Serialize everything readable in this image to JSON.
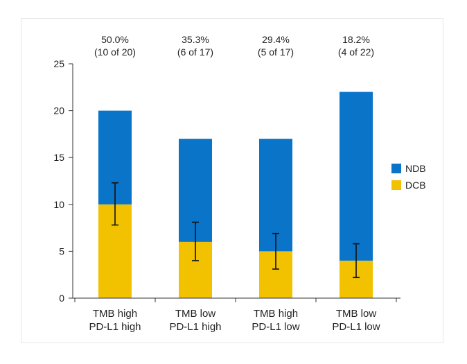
{
  "chart_data": {
    "type": "bar",
    "stacked": true,
    "categories": [
      [
        "TMB high",
        "PD-L1 high"
      ],
      [
        "TMB low",
        "PD-L1 high"
      ],
      [
        "TMB high",
        "PD-L1 low"
      ],
      [
        "TMB low",
        "PD-L1 low"
      ]
    ],
    "series": [
      {
        "name": "DCB",
        "color": "#f2c200",
        "values": [
          10,
          6,
          5,
          4
        ]
      },
      {
        "name": "NDB",
        "color": "#0a74c9",
        "values": [
          10,
          11,
          12,
          18
        ]
      }
    ],
    "error_bars": [
      {
        "low": 7.8,
        "high": 12.3
      },
      {
        "low": 4.0,
        "high": 8.1
      },
      {
        "low": 3.1,
        "high": 6.9
      },
      {
        "low": 2.2,
        "high": 5.8
      }
    ],
    "annotations": [
      [
        "50.0%",
        "(10 of 20)"
      ],
      [
        "35.3%",
        "(6 of 17)"
      ],
      [
        "29.4%",
        "(5 of 17)"
      ],
      [
        "18.2%",
        "(4 of 22)"
      ]
    ],
    "ylim": [
      0,
      25
    ],
    "yticks": [
      0,
      5,
      10,
      15,
      20,
      25
    ],
    "legend_order": [
      "NDB",
      "DCB"
    ],
    "legend_position": "right"
  }
}
